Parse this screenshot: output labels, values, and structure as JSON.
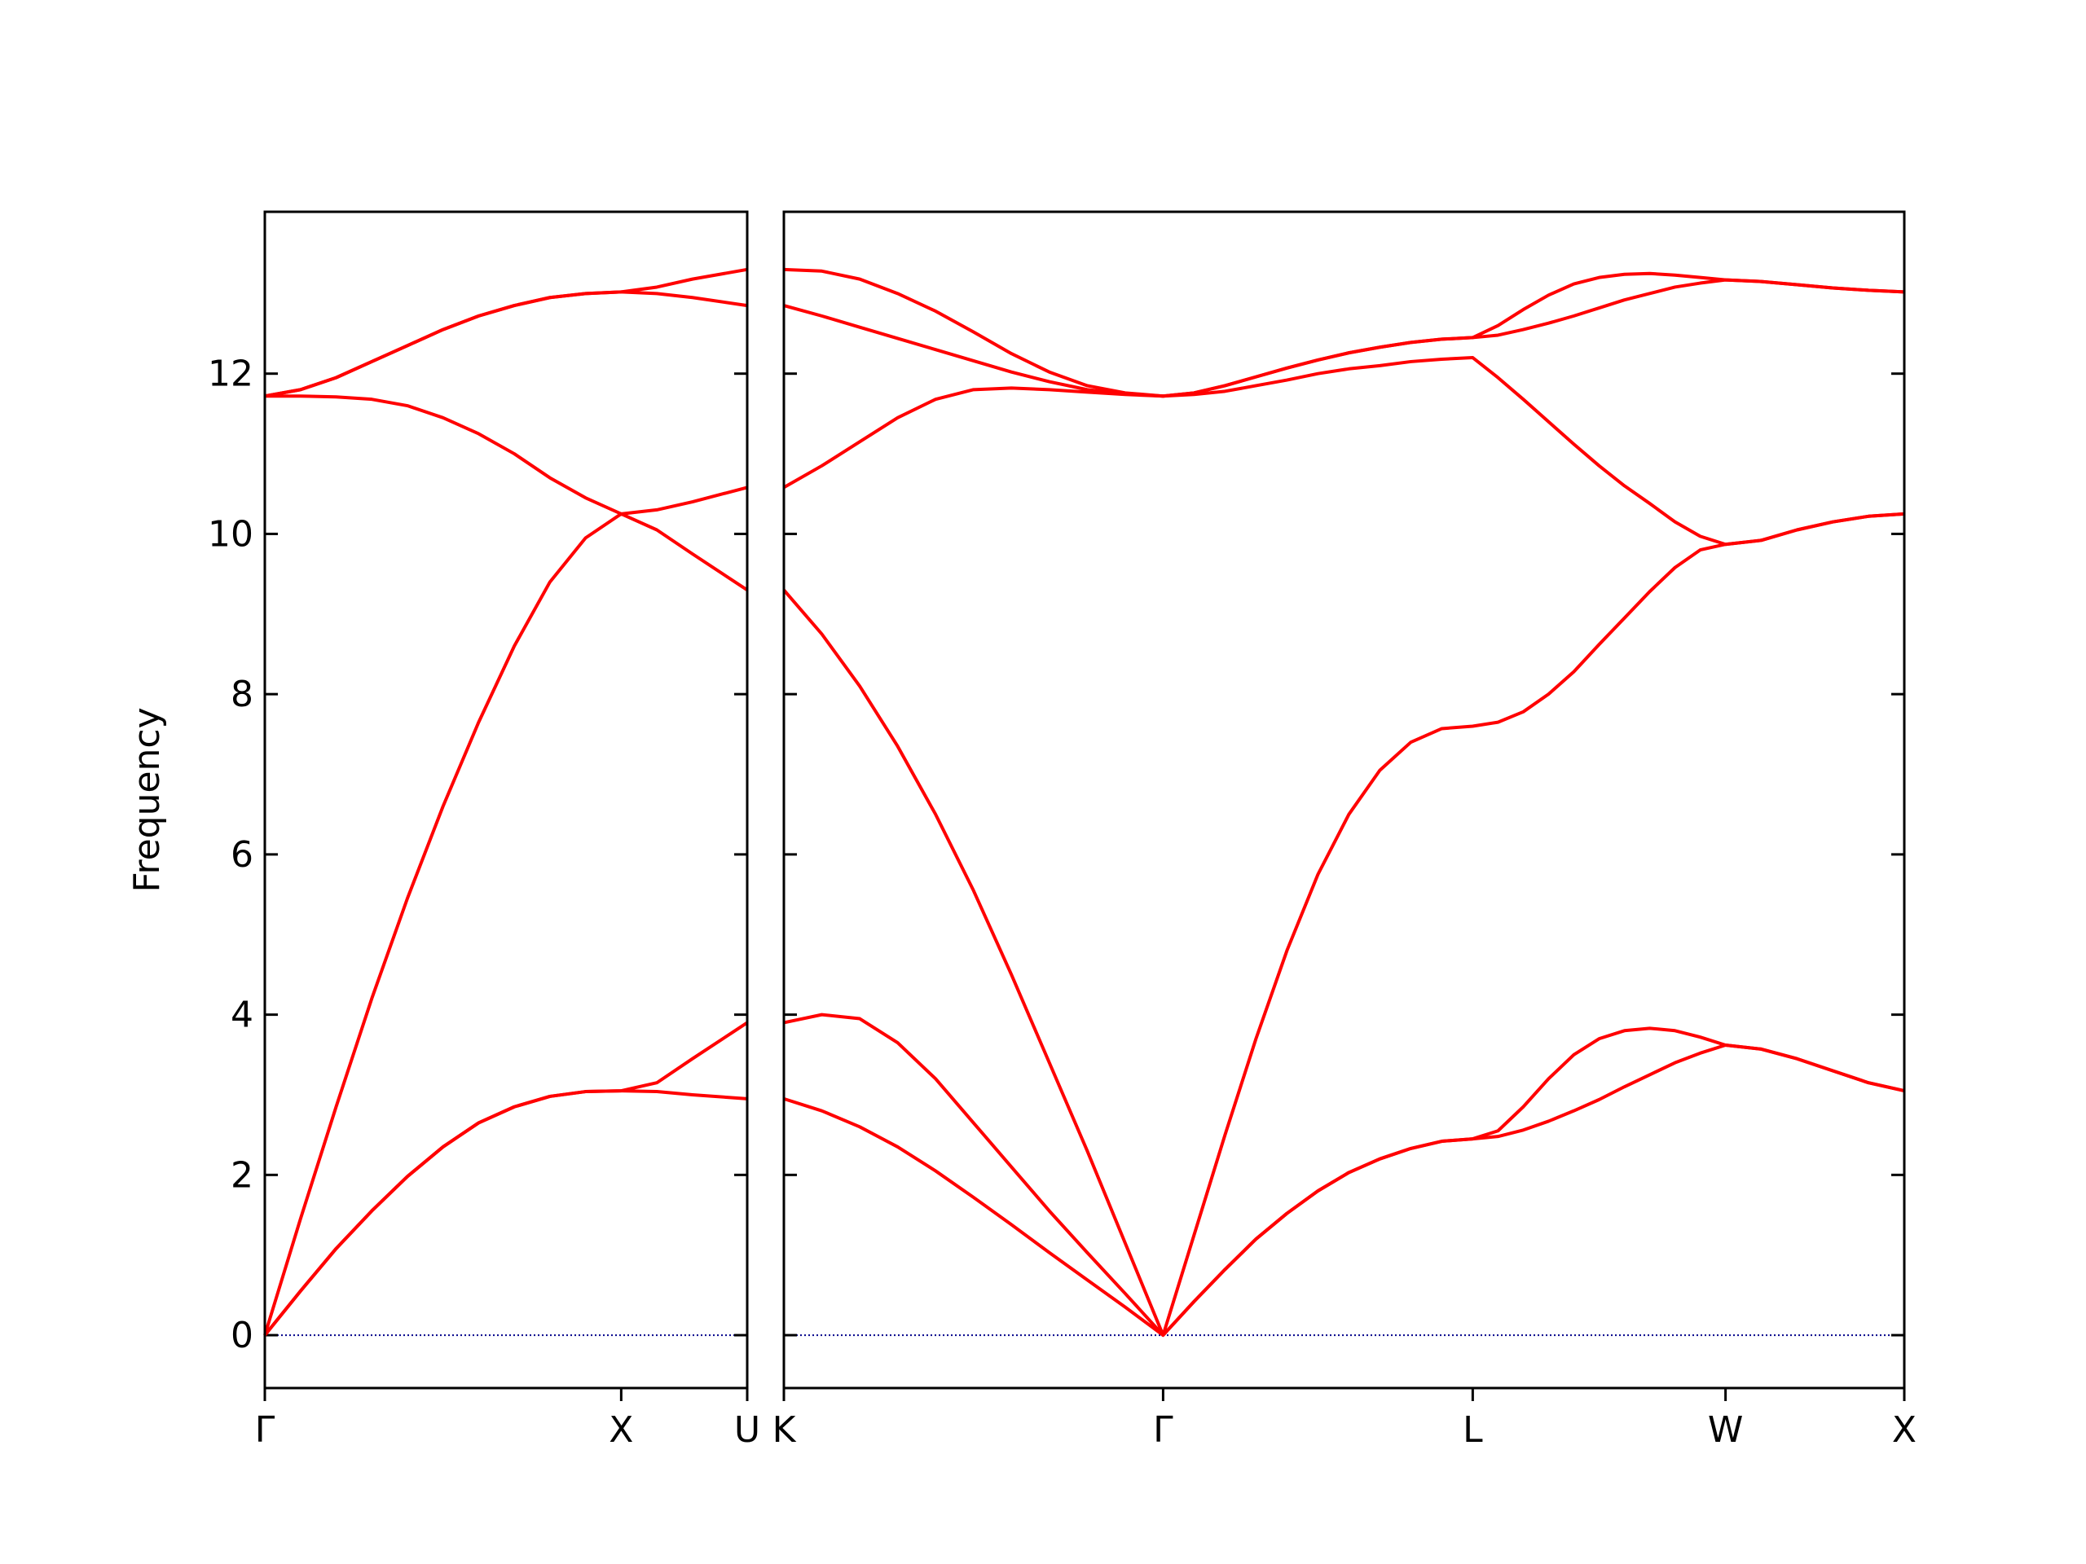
{
  "chart_data": [
    {
      "type": "line",
      "ylabel": "Frequency",
      "line_color": "#ff0000",
      "hline": 0,
      "hline_color": "#00008b",
      "ytick_labels": true,
      "xlim": [
        0,
        1.3536
      ],
      "ylim": [
        -0.66,
        14.02
      ],
      "yticks": [
        0,
        2,
        4,
        6,
        8,
        10,
        12
      ],
      "xticks": [
        {
          "value": 0,
          "label": "Γ"
        },
        {
          "value": 1,
          "label": "X"
        },
        {
          "value": 1.3536,
          "label": "U"
        }
      ],
      "x": [
        0,
        0.1,
        0.2,
        0.3,
        0.4,
        0.5,
        0.6,
        0.7,
        0.8,
        0.9,
        1.0,
        1.1,
        1.2,
        1.3536
      ],
      "series": [
        {
          "values": [
            0,
            0.55,
            1.08,
            1.55,
            1.98,
            2.35,
            2.65,
            2.85,
            2.98,
            3.04,
            3.05,
            3.04,
            3.0,
            2.95
          ]
        },
        {
          "values": [
            0,
            0.55,
            1.08,
            1.55,
            1.98,
            2.35,
            2.65,
            2.85,
            2.98,
            3.04,
            3.05,
            3.15,
            3.45,
            3.9
          ]
        },
        {
          "values": [
            0,
            1.45,
            2.85,
            4.2,
            5.45,
            6.6,
            7.65,
            8.6,
            9.4,
            9.95,
            10.25,
            10.05,
            9.75,
            9.3
          ]
        },
        {
          "values": [
            11.72,
            11.72,
            11.71,
            11.68,
            11.6,
            11.45,
            11.25,
            11.0,
            10.7,
            10.45,
            10.25,
            10.3,
            10.4,
            10.58
          ]
        },
        {
          "values": [
            11.72,
            11.8,
            11.95,
            12.15,
            12.35,
            12.55,
            12.72,
            12.85,
            12.95,
            13.0,
            13.02,
            13.0,
            12.95,
            12.85
          ]
        },
        {
          "values": [
            11.72,
            11.8,
            11.95,
            12.15,
            12.35,
            12.55,
            12.72,
            12.85,
            12.95,
            13.0,
            13.02,
            13.08,
            13.18,
            13.3
          ]
        }
      ]
    },
    {
      "type": "line",
      "line_color": "#ff0000",
      "hline": 0,
      "hline_color": "#00008b",
      "ytick_labels": false,
      "xlim": [
        1.3536,
        4.4874
      ],
      "ylim": [
        -0.66,
        14.02
      ],
      "yticks": [
        0,
        2,
        4,
        6,
        8,
        10,
        12
      ],
      "xticks": [
        {
          "value": 1.3536,
          "label": "K"
        },
        {
          "value": 2.4143,
          "label": "Γ"
        },
        {
          "value": 3.2803,
          "label": "L"
        },
        {
          "value": 3.9874,
          "label": "W"
        },
        {
          "value": 4.4874,
          "label": "X"
        }
      ],
      "x": [
        1.3536,
        1.4597,
        1.5657,
        1.6718,
        1.7779,
        1.8839,
        1.99,
        2.0961,
        2.2021,
        2.3082,
        2.4143,
        2.5009,
        2.5875,
        2.6741,
        2.7607,
        2.8473,
        2.9339,
        3.0205,
        3.1071,
        3.1937,
        3.2803,
        3.351,
        3.4217,
        3.4924,
        3.5631,
        3.6339,
        3.7046,
        3.7753,
        3.846,
        3.9167,
        3.9874,
        4.0874,
        4.1874,
        4.2874,
        4.3874,
        4.4874
      ],
      "series": [
        {
          "values": [
            2.95,
            2.8,
            2.6,
            2.35,
            2.05,
            1.72,
            1.38,
            1.03,
            0.69,
            0.35,
            0,
            0.42,
            0.82,
            1.2,
            1.52,
            1.8,
            2.03,
            2.2,
            2.33,
            2.42,
            2.45,
            2.48,
            2.56,
            2.67,
            2.8,
            2.94,
            3.1,
            3.25,
            3.4,
            3.52,
            3.62,
            3.57,
            3.45,
            3.3,
            3.15,
            3.05
          ]
        },
        {
          "values": [
            3.9,
            4.0,
            3.95,
            3.65,
            3.2,
            2.65,
            2.1,
            1.55,
            1.03,
            0.52,
            0,
            0.42,
            0.82,
            1.2,
            1.52,
            1.8,
            2.03,
            2.2,
            2.33,
            2.42,
            2.45,
            2.55,
            2.85,
            3.2,
            3.5,
            3.7,
            3.8,
            3.83,
            3.8,
            3.72,
            3.62,
            3.57,
            3.45,
            3.3,
            3.15,
            3.05
          ]
        },
        {
          "values": [
            9.3,
            8.75,
            8.1,
            7.35,
            6.5,
            5.55,
            4.5,
            3.4,
            2.3,
            1.15,
            0,
            1.25,
            2.5,
            3.7,
            4.8,
            5.75,
            6.5,
            7.05,
            7.4,
            7.57,
            7.6,
            7.65,
            7.78,
            8.0,
            8.28,
            8.62,
            8.95,
            9.28,
            9.58,
            9.8,
            9.87,
            9.92,
            10.05,
            10.15,
            10.22,
            10.25
          ]
        },
        {
          "values": [
            10.58,
            10.85,
            11.15,
            11.45,
            11.68,
            11.8,
            11.82,
            11.8,
            11.77,
            11.74,
            11.72,
            11.74,
            11.78,
            11.85,
            11.92,
            12.0,
            12.06,
            12.1,
            12.15,
            12.18,
            12.2,
            11.95,
            11.68,
            11.4,
            11.12,
            10.85,
            10.6,
            10.38,
            10.15,
            9.97,
            9.87,
            9.92,
            10.05,
            10.15,
            10.22,
            10.25
          ]
        },
        {
          "values": [
            12.85,
            12.72,
            12.58,
            12.44,
            12.3,
            12.16,
            12.02,
            11.9,
            11.8,
            11.75,
            11.72,
            11.76,
            11.85,
            11.96,
            12.07,
            12.17,
            12.26,
            12.33,
            12.39,
            12.43,
            12.45,
            12.48,
            12.55,
            12.63,
            12.72,
            12.82,
            12.92,
            13.0,
            13.08,
            13.13,
            13.17,
            13.15,
            13.11,
            13.07,
            13.04,
            13.02
          ]
        },
        {
          "values": [
            13.3,
            13.28,
            13.18,
            13.0,
            12.78,
            12.52,
            12.25,
            12.02,
            11.85,
            11.76,
            11.72,
            11.76,
            11.85,
            11.96,
            12.07,
            12.17,
            12.26,
            12.33,
            12.39,
            12.43,
            12.45,
            12.6,
            12.8,
            12.98,
            13.12,
            13.2,
            13.24,
            13.25,
            13.23,
            13.2,
            13.17,
            13.15,
            13.11,
            13.07,
            13.04,
            13.02
          ]
        }
      ]
    }
  ]
}
